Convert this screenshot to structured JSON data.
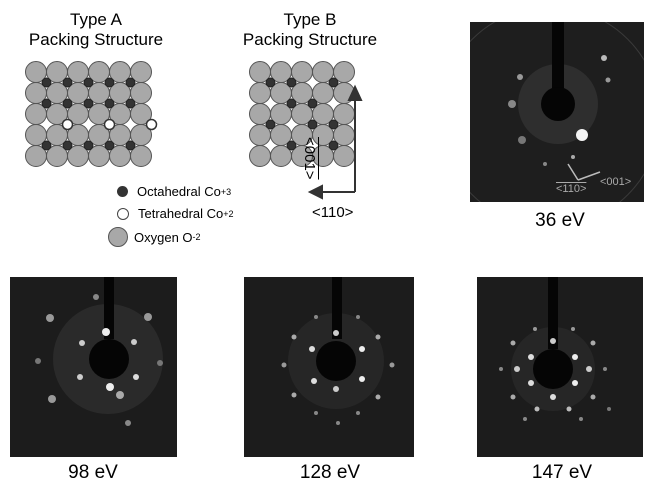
{
  "figure": {
    "type_a": {
      "line1": "Type A",
      "line2": "Packing Structure"
    },
    "type_b": {
      "line1": "Type B",
      "line2": "Packing Structure"
    },
    "legend": [
      {
        "label": "Octahedral Co",
        "sup": "+3",
        "color": "#333333",
        "kind": "octahedral"
      },
      {
        "label": "Tetrahedral Co",
        "sup": "+2",
        "color": "#ffffff",
        "kind": "tetrahedral"
      },
      {
        "label": "Oxygen O",
        "sup": "-2",
        "color": "#a8a8a8",
        "kind": "oxygen"
      }
    ],
    "axes": {
      "horizontal": "<110>",
      "vertical": "<001>",
      "inset_h": "<110>",
      "inset_v": "<001>"
    },
    "panels": [
      {
        "energy": "36 eV"
      },
      {
        "energy": "98 eV"
      },
      {
        "energy": "128 eV"
      },
      {
        "energy": "147 eV"
      }
    ]
  }
}
